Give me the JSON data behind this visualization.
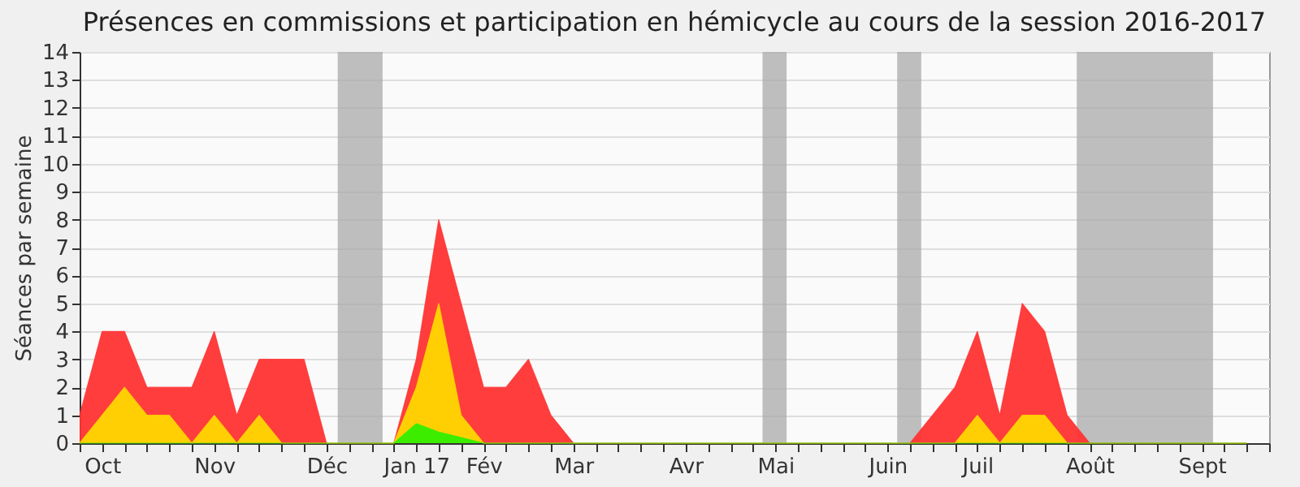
{
  "chart_data": {
    "type": "area",
    "title": "Présences en commissions et participation en hémicycle au cours de la session 2016-2017",
    "ylabel": "Séances par semaine",
    "x": [
      "2016-10-03",
      "2016-10-10",
      "2016-10-17",
      "2016-10-24",
      "2016-10-31",
      "2016-11-07",
      "2016-11-14",
      "2016-11-21",
      "2016-11-28",
      "2016-12-05",
      "2016-12-12",
      "2016-12-19",
      "2016-12-26",
      "2017-01-02",
      "2017-01-09",
      "2017-01-16",
      "2017-01-23",
      "2017-01-30",
      "2017-02-06",
      "2017-02-13",
      "2017-02-20",
      "2017-02-27",
      "2017-03-06",
      "2017-03-13",
      "2017-03-20",
      "2017-03-27",
      "2017-04-03",
      "2017-04-10",
      "2017-04-17",
      "2017-04-24",
      "2017-05-01",
      "2017-05-08",
      "2017-05-15",
      "2017-05-22",
      "2017-05-29",
      "2017-06-05",
      "2017-06-12",
      "2017-06-19",
      "2017-06-26",
      "2017-07-03",
      "2017-07-10",
      "2017-07-17",
      "2017-07-24",
      "2017-07-31",
      "2017-08-07",
      "2017-08-14",
      "2017-08-21",
      "2017-08-28",
      "2017-09-04",
      "2017-09-11",
      "2017-09-18",
      "2017-09-25",
      "2017-10-02"
    ],
    "series": [
      {
        "color": "#ff3333",
        "values": [
          1,
          4,
          4,
          2,
          2,
          2,
          4,
          1,
          3,
          3,
          3,
          0,
          0,
          0,
          0,
          3,
          8,
          5,
          2,
          2,
          3,
          1,
          0,
          0,
          0,
          0,
          0,
          0,
          0,
          0,
          0,
          0,
          0,
          0,
          0,
          0,
          0,
          0,
          1,
          2,
          4,
          1,
          5,
          4,
          1,
          0,
          0,
          0,
          0,
          0,
          0,
          0,
          0
        ]
      },
      {
        "color": "#ffd700",
        "values": [
          0,
          1,
          2,
          1,
          1,
          0,
          1,
          0,
          1,
          0,
          0,
          0,
          0,
          0,
          0,
          2,
          5,
          1,
          0,
          0,
          0,
          0,
          0,
          0,
          0,
          0,
          0,
          0,
          0,
          0,
          0,
          0,
          0,
          0,
          0,
          0,
          0,
          0,
          0,
          0,
          1,
          0,
          1,
          1,
          0,
          0,
          0,
          0,
          0,
          0,
          0,
          0,
          0
        ]
      },
      {
        "color": "#33ee00",
        "values": [
          0,
          0,
          0,
          0,
          0,
          0,
          0,
          0,
          0,
          0,
          0,
          0,
          0,
          0,
          0,
          0.7,
          0.4,
          0.2,
          0,
          0,
          0,
          0,
          0,
          0,
          0,
          0,
          0,
          0,
          0,
          0,
          0,
          0,
          0,
          0,
          0,
          0,
          0,
          0,
          0,
          0,
          0,
          0,
          0,
          0,
          0,
          0,
          0,
          0,
          0,
          0,
          0,
          0,
          0
        ]
      }
    ],
    "xlim": [
      "2016-10-03",
      "2017-10-09"
    ],
    "xticks": [
      {
        "value": "2016-10-03",
        "label": null
      },
      {
        "value": "2016-10-10",
        "label": "Oct"
      },
      {
        "value": "2016-10-17",
        "label": null
      },
      {
        "value": "2016-10-24",
        "label": null
      },
      {
        "value": "2016-10-31",
        "label": null
      },
      {
        "value": "2016-11-07",
        "label": null
      },
      {
        "value": "2016-11-14",
        "label": "Nov"
      },
      {
        "value": "2016-11-21",
        "label": null
      },
      {
        "value": "2016-11-28",
        "label": null
      },
      {
        "value": "2016-12-05",
        "label": null
      },
      {
        "value": "2016-12-12",
        "label": null
      },
      {
        "value": "2016-12-19",
        "label": "Déc"
      },
      {
        "value": "2016-12-26",
        "label": null
      },
      {
        "value": "2017-01-02",
        "label": null
      },
      {
        "value": "2017-01-09",
        "label": null
      },
      {
        "value": "2017-01-16",
        "label": "Jan 17"
      },
      {
        "value": "2017-01-23",
        "label": null
      },
      {
        "value": "2017-01-30",
        "label": null
      },
      {
        "value": "2017-02-06",
        "label": "Fév"
      },
      {
        "value": "2017-02-13",
        "label": null
      },
      {
        "value": "2017-02-20",
        "label": null
      },
      {
        "value": "2017-02-27",
        "label": null
      },
      {
        "value": "2017-03-06",
        "label": "Mar"
      },
      {
        "value": "2017-03-13",
        "label": null
      },
      {
        "value": "2017-03-20",
        "label": null
      },
      {
        "value": "2017-03-27",
        "label": null
      },
      {
        "value": "2017-04-03",
        "label": null
      },
      {
        "value": "2017-04-10",
        "label": "Avr"
      },
      {
        "value": "2017-04-17",
        "label": null
      },
      {
        "value": "2017-04-24",
        "label": null
      },
      {
        "value": "2017-05-01",
        "label": null
      },
      {
        "value": "2017-05-08",
        "label": "Mai"
      },
      {
        "value": "2017-05-15",
        "label": null
      },
      {
        "value": "2017-05-22",
        "label": null
      },
      {
        "value": "2017-05-29",
        "label": null
      },
      {
        "value": "2017-06-05",
        "label": null
      },
      {
        "value": "2017-06-12",
        "label": "Juin"
      },
      {
        "value": "2017-06-19",
        "label": null
      },
      {
        "value": "2017-06-26",
        "label": null
      },
      {
        "value": "2017-07-03",
        "label": null
      },
      {
        "value": "2017-07-10",
        "label": "Juil"
      },
      {
        "value": "2017-07-17",
        "label": null
      },
      {
        "value": "2017-07-24",
        "label": null
      },
      {
        "value": "2017-07-31",
        "label": null
      },
      {
        "value": "2017-08-07",
        "label": null
      },
      {
        "value": "2017-08-14",
        "label": "Août"
      },
      {
        "value": "2017-08-21",
        "label": null
      },
      {
        "value": "2017-08-28",
        "label": null
      },
      {
        "value": "2017-09-04",
        "label": null
      },
      {
        "value": "2017-09-11",
        "label": null
      },
      {
        "value": "2017-09-18",
        "label": "Sept"
      },
      {
        "value": "2017-09-25",
        "label": null
      },
      {
        "value": "2017-10-02",
        "label": null
      },
      {
        "value": "2017-10-09",
        "label": null
      }
    ],
    "ylim": [
      0,
      14
    ],
    "yticks": [
      0,
      1,
      2,
      3,
      4,
      5,
      6,
      7,
      8,
      9,
      10,
      11,
      12,
      13,
      14
    ],
    "grid": "y",
    "bands": [
      {
        "axis": "x",
        "from": "2016-12-22T12:00",
        "to": "2017-01-05T12:00",
        "color": "#aaaaaa"
      },
      {
        "axis": "x",
        "from": "2017-05-04",
        "to": "2017-05-11T12:00",
        "color": "#aaaaaa"
      },
      {
        "axis": "x",
        "from": "2017-06-15",
        "to": "2017-06-22T12:00",
        "color": "#aaaaaa"
      },
      {
        "axis": "x",
        "from": "2017-08-10",
        "to": "2017-09-21T12:00",
        "color": "#aaaaaa"
      }
    ]
  }
}
